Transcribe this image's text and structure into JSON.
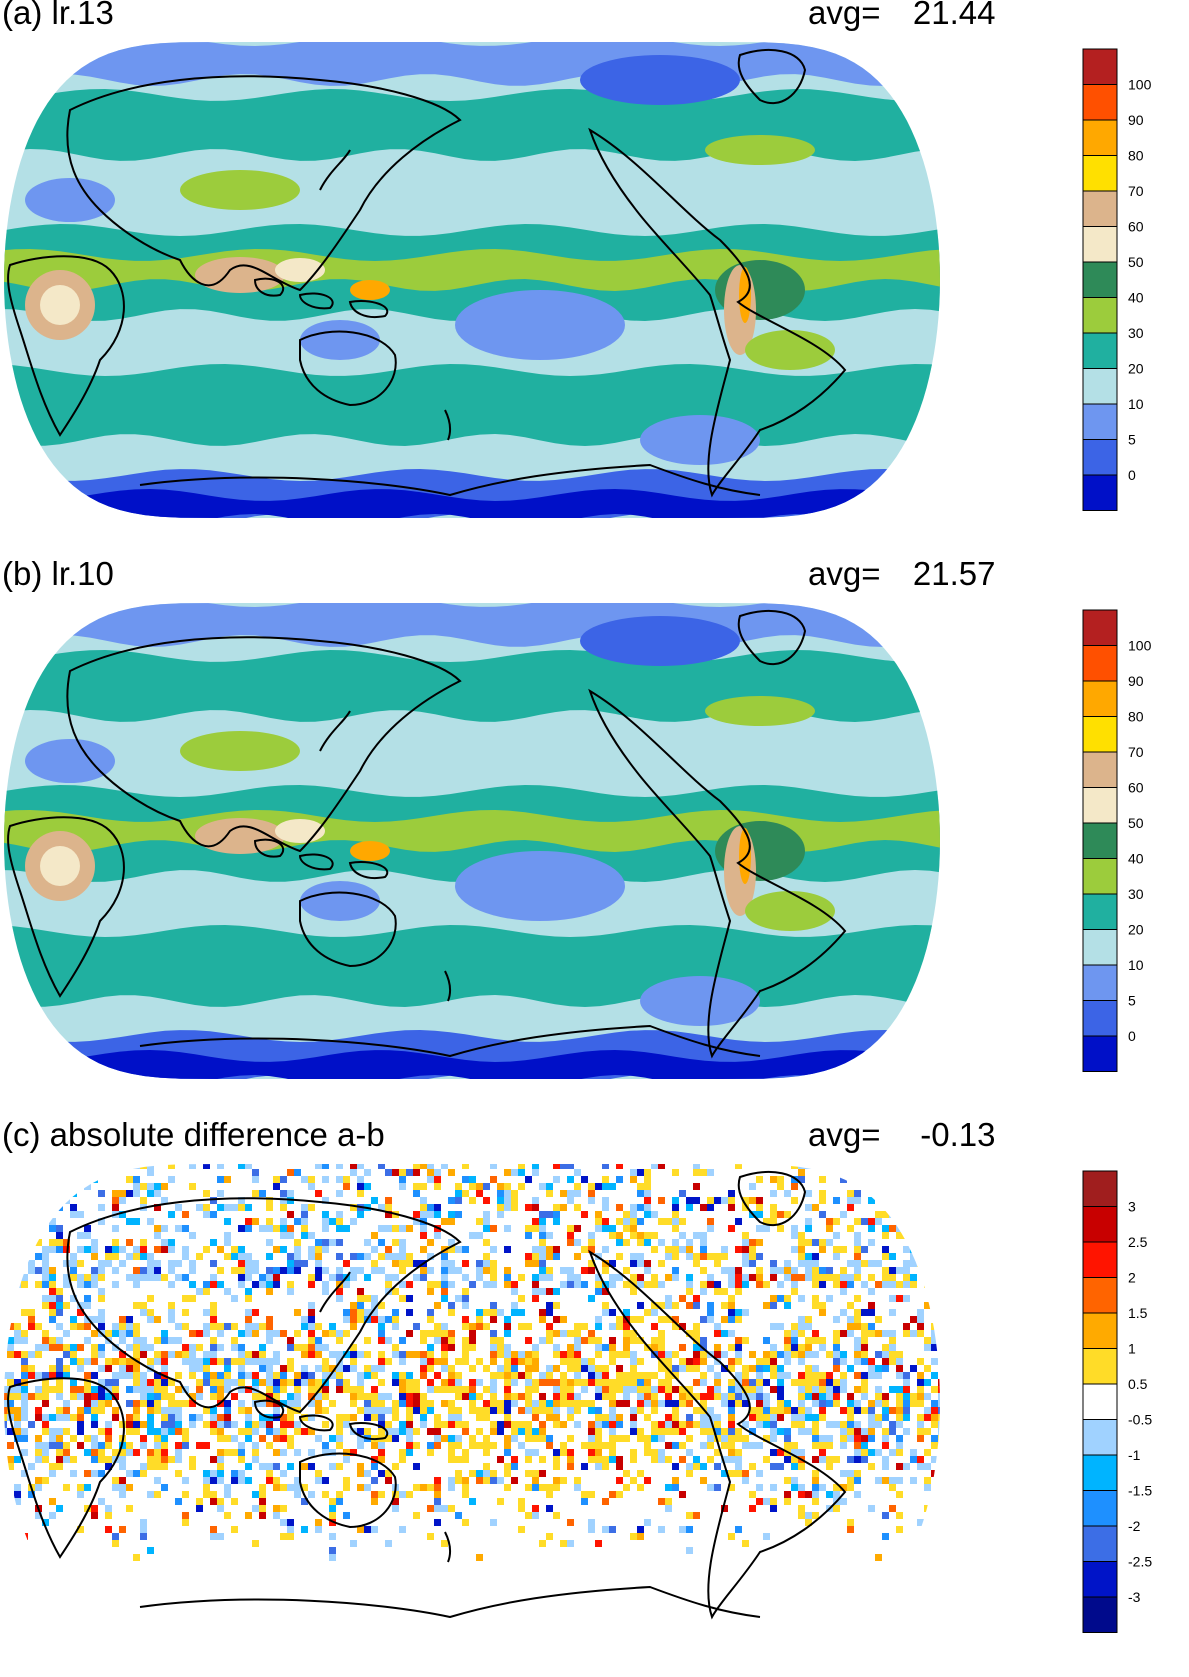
{
  "panels": [
    {
      "title": "(a) lr.13",
      "avg_label": "avg=",
      "avg_value": "21.44",
      "colorbar": {
        "colors": [
          "#0010c8",
          "#3c64e6",
          "#6e96f0",
          "#b4e0e6",
          "#20b0a0",
          "#9ccc3c",
          "#2e8a58",
          "#f4e8c8",
          "#dcb48c",
          "#ffe000",
          "#ffa800",
          "#ff5000",
          "#b42020"
        ],
        "labels": [
          "0",
          "5",
          "10",
          "20",
          "30",
          "40",
          "50",
          "60",
          "70",
          "80",
          "90",
          "100"
        ]
      }
    },
    {
      "title": "(b) lr.10",
      "avg_label": "avg=",
      "avg_value": "21.57",
      "colorbar": {
        "colors": [
          "#0010c8",
          "#3c64e6",
          "#6e96f0",
          "#b4e0e6",
          "#20b0a0",
          "#9ccc3c",
          "#2e8a58",
          "#f4e8c8",
          "#dcb48c",
          "#ffe000",
          "#ffa800",
          "#ff5000",
          "#b42020"
        ],
        "labels": [
          "0",
          "5",
          "10",
          "20",
          "30",
          "40",
          "50",
          "60",
          "70",
          "80",
          "90",
          "100"
        ]
      }
    },
    {
      "title": "(c) absolute difference a-b",
      "avg_label": "avg=",
      "avg_value": "-0.13",
      "colorbar": {
        "colors": [
          "#000a8c",
          "#0014c8",
          "#3c6ee6",
          "#1e90ff",
          "#00b4ff",
          "#a0d2ff",
          "#ffffff",
          "#ffdc28",
          "#ffaa00",
          "#ff6400",
          "#ff1400",
          "#c80000",
          "#a01e1e"
        ],
        "labels": [
          "-3",
          "-2.5",
          "-2",
          "-1.5",
          "-1",
          "-0.5",
          "0.5",
          "1",
          "1.5",
          "2",
          "2.5",
          "3"
        ]
      }
    }
  ]
}
